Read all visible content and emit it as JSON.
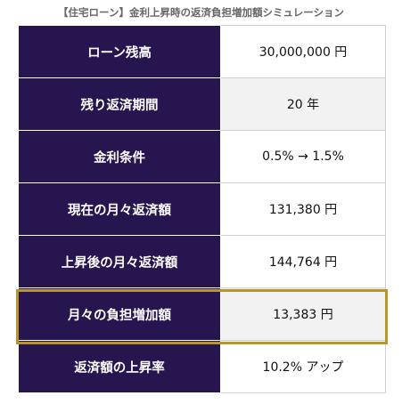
{
  "title": "【住宅ローン】金利上昇時の返済負担増加額シミュレーション",
  "table": {
    "rows": [
      [
        "ローン残高",
        "30,000,000 円"
      ],
      [
        "残り返済期間",
        "20 年"
      ],
      [
        "金利条件",
        "0.5% → 1.5%"
      ],
      [
        "現在の月々返済額",
        "131,380 円"
      ],
      [
        "上昇後の月々返済額",
        "144,764 円"
      ],
      [
        "月々の負担増加額",
        "13,383 円"
      ],
      [
        "返済額の上昇率",
        "10.2% アップ"
      ]
    ]
  }
}
